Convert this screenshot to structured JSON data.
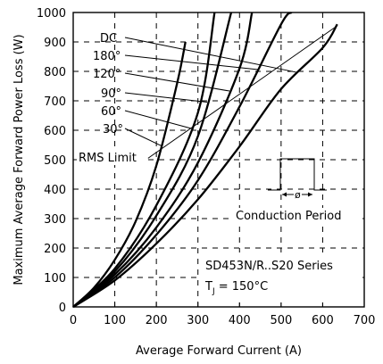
{
  "chart_data": {
    "type": "line",
    "title": "",
    "xlabel": "Average Forward Current (A)",
    "ylabel": "Maximum Average Forward Power Loss (W)",
    "xlim": [
      0,
      700
    ],
    "ylim": [
      0,
      1000
    ],
    "xticks": [
      0,
      100,
      200,
      300,
      400,
      500,
      600,
      700
    ],
    "yticks": [
      0,
      100,
      200,
      300,
      400,
      500,
      600,
      700,
      800,
      900,
      1000
    ],
    "grid": true,
    "series": [
      {
        "name": "30°",
        "x": [
          0,
          50,
          100,
          150,
          200,
          250,
          270
        ],
        "y": [
          0,
          65,
          160,
          290,
          480,
          760,
          900
        ]
      },
      {
        "name": "60°",
        "x": [
          0,
          100,
          200,
          300,
          340
        ],
        "y": [
          0,
          130,
          345,
          660,
          1000
        ]
      },
      {
        "name": "90°",
        "x": [
          0,
          100,
          200,
          300,
          380
        ],
        "y": [
          0,
          120,
          310,
          580,
          1000
        ]
      },
      {
        "name": "120°",
        "x": [
          0,
          100,
          200,
          300,
          400,
          430
        ],
        "y": [
          0,
          110,
          270,
          490,
          810,
          1000
        ]
      },
      {
        "name": "180°",
        "x": [
          0,
          100,
          200,
          300,
          400,
          500,
          525
        ],
        "y": [
          0,
          100,
          245,
          430,
          680,
          960,
          1000
        ]
      },
      {
        "name": "DC",
        "x": [
          0,
          100,
          200,
          300,
          400,
          500,
          600,
          635
        ],
        "y": [
          0,
          90,
          215,
          365,
          545,
          740,
          880,
          960
        ]
      }
    ],
    "rms_limit": {
      "name": "RMS Limit",
      "x": [
        180,
        635
      ],
      "y": [
        505,
        955
      ]
    },
    "annotations": {
      "dc": "DC",
      "a180": "180°",
      "a120": "120°",
      "a90": "90°",
      "a60": "60°",
      "a30": "30°",
      "rms_label": "RMS Limit",
      "conduction_label": "Conduction Period",
      "phi": "ø",
      "series_name": "SD453N/R..S20 Series",
      "tj_prefix": "T",
      "tj_sub": "J",
      "tj_value": " = 150°C"
    }
  }
}
